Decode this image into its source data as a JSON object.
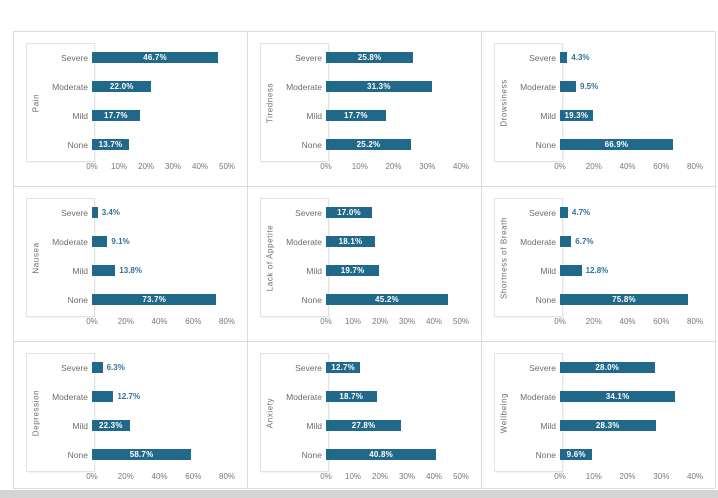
{
  "colors": {
    "bar": "#21698b",
    "value_label_inside": "#ffffff",
    "value_label_outside": "#2f7499",
    "category_label": "#6d6d6d",
    "axis_label": "#787878",
    "panel_border": "#dcdcdc",
    "label_box_border": "#e3e3e3",
    "bottom_strip": "#d4d4d4",
    "background": "#ffffff"
  },
  "categories": [
    "Severe",
    "Moderate",
    "Mild",
    "None"
  ],
  "chart_data": [
    {
      "type": "bar",
      "orientation": "horizontal",
      "title": "Pain",
      "categories": [
        "Severe",
        "Moderate",
        "Mild",
        "None"
      ],
      "values": [
        46.7,
        22.0,
        17.7,
        13.7
      ],
      "labels": [
        "46.7%",
        "22.0%",
        "17.7%",
        "13.7%"
      ],
      "xlim": [
        0,
        50
      ],
      "tick_values": [
        0,
        10,
        20,
        30,
        40,
        50
      ],
      "tick_labels": [
        "0%",
        "10%",
        "20%",
        "30%",
        "40%",
        "50%"
      ],
      "grid": false,
      "legend": false
    },
    {
      "type": "bar",
      "orientation": "horizontal",
      "title": "Tiredness",
      "categories": [
        "Severe",
        "Moderate",
        "Mild",
        "None"
      ],
      "values": [
        25.8,
        31.3,
        17.7,
        25.2
      ],
      "labels": [
        "25.8%",
        "31.3%",
        "17.7%",
        "25.2%"
      ],
      "xlim": [
        0,
        40
      ],
      "tick_values": [
        0,
        10,
        20,
        30,
        40
      ],
      "tick_labels": [
        "0%",
        "10%",
        "20%",
        "30%",
        "40%"
      ],
      "grid": false,
      "legend": false
    },
    {
      "type": "bar",
      "orientation": "horizontal",
      "title": "Drowsiness",
      "categories": [
        "Severe",
        "Moderate",
        "Mild",
        "None"
      ],
      "values": [
        4.3,
        9.5,
        19.3,
        66.9
      ],
      "labels": [
        "4.3%",
        "9.5%",
        "19.3%",
        "66.9%"
      ],
      "xlim": [
        0,
        80
      ],
      "tick_values": [
        0,
        20,
        40,
        60,
        80
      ],
      "tick_labels": [
        "0%",
        "20%",
        "40%",
        "60%",
        "80%"
      ],
      "grid": false,
      "legend": false
    },
    {
      "type": "bar",
      "orientation": "horizontal",
      "title": "Nausea",
      "categories": [
        "Severe",
        "Moderate",
        "Mild",
        "None"
      ],
      "values": [
        3.4,
        9.1,
        13.8,
        73.7
      ],
      "labels": [
        "3.4%",
        "9.1%",
        "13.8%",
        "73.7%"
      ],
      "xlim": [
        0,
        80
      ],
      "tick_values": [
        0,
        20,
        40,
        60,
        80
      ],
      "tick_labels": [
        "0%",
        "20%",
        "40%",
        "60%",
        "80%"
      ],
      "grid": false,
      "legend": false
    },
    {
      "type": "bar",
      "orientation": "horizontal",
      "title": "Lack of Appetite",
      "categories": [
        "Severe",
        "Moderate",
        "Mild",
        "None"
      ],
      "values": [
        17.0,
        18.1,
        19.7,
        45.2
      ],
      "labels": [
        "17.0%",
        "18.1%",
        "19.7%",
        "45.2%"
      ],
      "xlim": [
        0,
        50
      ],
      "tick_values": [
        0,
        10,
        20,
        30,
        40,
        50
      ],
      "tick_labels": [
        "0%",
        "10%",
        "20%",
        "30%",
        "40%",
        "50%"
      ],
      "grid": false,
      "legend": false
    },
    {
      "type": "bar",
      "orientation": "horizontal",
      "title": "Shortness of Breath",
      "categories": [
        "Severe",
        "Moderate",
        "Mild",
        "None"
      ],
      "values": [
        4.7,
        6.7,
        12.8,
        75.8
      ],
      "labels": [
        "4.7%",
        "6.7%",
        "12.8%",
        "75.8%"
      ],
      "xlim": [
        0,
        80
      ],
      "tick_values": [
        0,
        20,
        40,
        60,
        80
      ],
      "tick_labels": [
        "0%",
        "20%",
        "40%",
        "60%",
        "80%"
      ],
      "grid": false,
      "legend": false
    },
    {
      "type": "bar",
      "orientation": "horizontal",
      "title": "Depression",
      "categories": [
        "Severe",
        "Moderate",
        "Mild",
        "None"
      ],
      "values": [
        6.3,
        12.7,
        22.3,
        58.7
      ],
      "labels": [
        "6.3%",
        "12.7%",
        "22.3%",
        "58.7%"
      ],
      "xlim": [
        0,
        80
      ],
      "tick_values": [
        0,
        20,
        40,
        60,
        80
      ],
      "tick_labels": [
        "0%",
        "20%",
        "40%",
        "60%",
        "80%"
      ],
      "grid": false,
      "legend": false
    },
    {
      "type": "bar",
      "orientation": "horizontal",
      "title": "Anxiety",
      "categories": [
        "Severe",
        "Moderate",
        "Mild",
        "None"
      ],
      "values": [
        12.7,
        18.7,
        27.8,
        40.8
      ],
      "labels": [
        "12.7%",
        "18.7%",
        "27.8%",
        "40.8%"
      ],
      "xlim": [
        0,
        50
      ],
      "tick_values": [
        0,
        10,
        20,
        30,
        40,
        50
      ],
      "tick_labels": [
        "0%",
        "10%",
        "20%",
        "30%",
        "40%",
        "50%"
      ],
      "grid": false,
      "legend": false
    },
    {
      "type": "bar",
      "orientation": "horizontal",
      "title": "Wellbeing",
      "categories": [
        "Severe",
        "Moderate",
        "Mild",
        "None"
      ],
      "values": [
        28.0,
        34.1,
        28.3,
        9.6
      ],
      "labels": [
        "28.0%",
        "34.1%",
        "28.3%",
        "9.6%"
      ],
      "xlim": [
        0,
        40
      ],
      "tick_values": [
        0,
        10,
        20,
        30,
        40
      ],
      "tick_labels": [
        "0%",
        "10%",
        "20%",
        "30%",
        "40%"
      ],
      "grid": false,
      "legend": false
    }
  ]
}
